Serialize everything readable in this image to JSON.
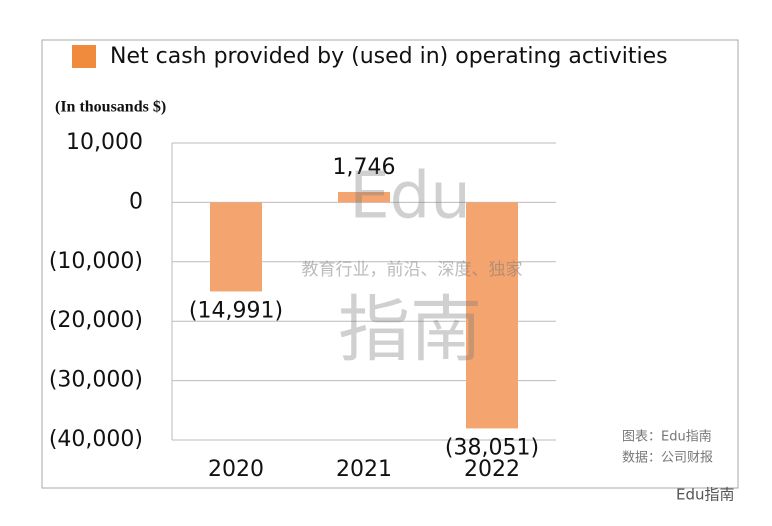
{
  "chart_data": {
    "type": "bar",
    "legend_label": "Net cash provided by (used in) operating activities",
    "unit_note": "(In thousands $)",
    "categories": [
      "2020",
      "2021",
      "2022"
    ],
    "series": [
      {
        "name": "Net cash provided by (used in) operating activities",
        "color": "#f4a46e",
        "legend_color": "#f08a3c",
        "values": [
          -14991,
          1746,
          -38051
        ],
        "value_labels": [
          "(14,991)",
          "1,746",
          "(38,051)"
        ]
      }
    ],
    "ylim": [
      -40000,
      10000
    ],
    "yticks": [
      {
        "value": 10000,
        "label": "10,000"
      },
      0,
      {
        "value": -10000,
        "label": "(10,000)"
      },
      {
        "value": -20000,
        "label": "(20,000)"
      },
      {
        "value": -30000,
        "label": "(30,000)"
      },
      {
        "value": -40000,
        "label": "(40,000)"
      }
    ],
    "grid": true,
    "annotations": [
      "Edu",
      "指南",
      "教育行业，前沿、深度、独家",
      "图表：Edu指南",
      "数据：公司财报",
      "Edu指南"
    ]
  }
}
